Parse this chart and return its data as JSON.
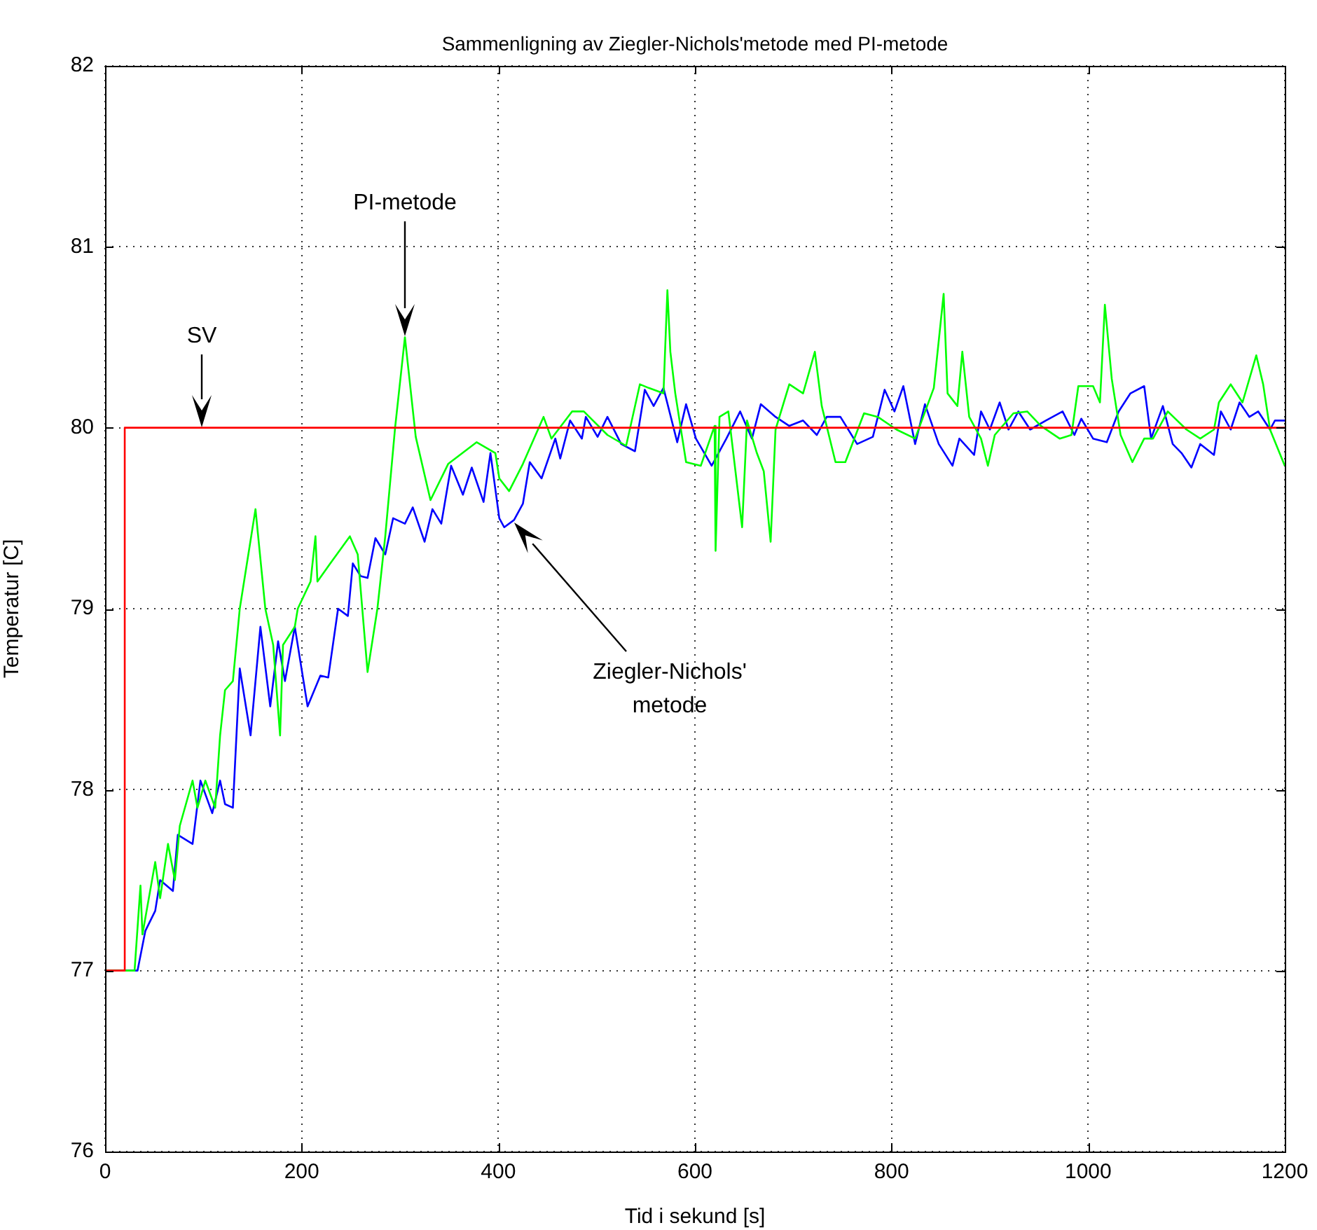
{
  "chart_data": {
    "type": "line",
    "title": "Sammenligning av Ziegler-Nichols'metode med PI-metode",
    "xlabel": "Tid i sekund [s]",
    "ylabel": "Temperatur [C]",
    "xlim": [
      0,
      1200
    ],
    "xticks": [
      0,
      200,
      400,
      600,
      800,
      1000,
      1200
    ],
    "ylim": [
      76,
      82
    ],
    "yticks": [
      76,
      77,
      78,
      79,
      80,
      81,
      82
    ],
    "grid": true,
    "legend": false,
    "marker": "none",
    "line_style": "solid",
    "annotations": [
      "SV",
      "PI-metode",
      "Ziegler-Nichols'\nmetode"
    ],
    "series": [
      {
        "color": "#ff0000",
        "x": [
          0,
          20,
          20,
          1200
        ],
        "values": [
          77,
          77,
          80,
          80
        ]
      },
      {
        "color": "#00ff00",
        "x": [
          0,
          30,
          36,
          38,
          51,
          56,
          64,
          71,
          76,
          89,
          94,
          102,
          112,
          117,
          122,
          130,
          137,
          153,
          163,
          171,
          178,
          181,
          193,
          196,
          209,
          214,
          216,
          229,
          249,
          257,
          267,
          277,
          285,
          295,
          305,
          316,
          331,
          349,
          378,
          397,
          401,
          411,
          425,
          446,
          454,
          475,
          487,
          511,
          530,
          544,
          553,
          568,
          572,
          575,
          580,
          591,
          606,
          620,
          621,
          625,
          634,
          648,
          653,
          663,
          670,
          677,
          682,
          696,
          710,
          722,
          729,
          743,
          753,
          772,
          786,
          805,
          824,
          843,
          853,
          857,
          867,
          872,
          879,
          891,
          898,
          905,
          924,
          938,
          952,
          971,
          983,
          990,
          1005,
          1012,
          1017,
          1024,
          1033,
          1045,
          1057,
          1066,
          1081,
          1100,
          1114,
          1128,
          1133,
          1145,
          1157,
          1171,
          1178,
          1185,
          1200
        ],
        "values": [
          77,
          77,
          77.47,
          77.2,
          77.6,
          77.4,
          77.7,
          77.5,
          77.8,
          78.05,
          77.9,
          78.05,
          77.9,
          78.3,
          78.55,
          78.6,
          79,
          79.55,
          79,
          78.8,
          78.3,
          78.8,
          78.9,
          79,
          79.15,
          79.4,
          79.15,
          79.25,
          79.4,
          79.3,
          78.65,
          79,
          79.4,
          80,
          80.5,
          79.95,
          79.6,
          79.8,
          79.92,
          79.86,
          79.72,
          79.65,
          79.8,
          80.06,
          79.94,
          80.09,
          80.09,
          79.96,
          79.9,
          80.24,
          80.22,
          80.19,
          80.76,
          80.42,
          80.19,
          79.81,
          79.79,
          80.01,
          79.32,
          80.06,
          80.09,
          79.45,
          80.04,
          79.86,
          79.76,
          79.37,
          79.99,
          80.24,
          80.19,
          80.42,
          80.12,
          79.81,
          79.81,
          80.08,
          80.06,
          79.99,
          79.94,
          80.22,
          80.74,
          80.19,
          80.12,
          80.42,
          80.06,
          79.94,
          79.79,
          79.96,
          80.08,
          80.09,
          80.01,
          79.94,
          79.96,
          80.23,
          80.23,
          80.14,
          80.68,
          80.27,
          79.96,
          79.81,
          79.94,
          79.94,
          80.09,
          79.99,
          79.94,
          79.99,
          80.14,
          80.24,
          80.14,
          80.4,
          80.24,
          79.99,
          79.79
        ]
      },
      {
        "color": "#0000ff",
        "x": [
          0,
          33,
          41,
          51,
          56,
          69,
          74,
          89,
          97,
          109,
          117,
          122,
          130,
          137,
          148,
          158,
          168,
          176,
          183,
          193,
          206,
          219,
          227,
          237,
          247,
          252,
          260,
          267,
          275,
          285,
          293,
          305,
          313,
          325,
          333,
          342,
          352,
          364,
          373,
          385,
          392,
          401,
          406,
          416,
          425,
          432,
          444,
          458,
          463,
          473,
          485,
          489,
          501,
          511,
          525,
          539,
          549,
          558,
          568,
          582,
          591,
          601,
          617,
          632,
          646,
          658,
          667,
          682,
          696,
          710,
          724,
          734,
          748,
          765,
          781,
          793,
          803,
          812,
          824,
          834,
          848,
          862,
          869,
          884,
          891,
          900,
          910,
          919,
          929,
          941,
          957,
          974,
          986,
          993,
          1005,
          1019,
          1031,
          1043,
          1057,
          1064,
          1076,
          1086,
          1095,
          1105,
          1114,
          1128,
          1135,
          1145,
          1154,
          1164,
          1173,
          1185,
          1190,
          1200
        ],
        "values": [
          77,
          77,
          77.22,
          77.33,
          77.5,
          77.44,
          77.75,
          77.7,
          78.05,
          77.87,
          78.05,
          77.92,
          77.9,
          78.67,
          78.3,
          78.9,
          78.46,
          78.82,
          78.6,
          78.9,
          78.46,
          78.63,
          78.62,
          79,
          78.96,
          79.25,
          79.18,
          79.17,
          79.39,
          79.3,
          79.5,
          79.47,
          79.56,
          79.37,
          79.55,
          79.47,
          79.79,
          79.63,
          79.78,
          79.59,
          79.86,
          79.5,
          79.45,
          79.49,
          79.58,
          79.81,
          79.72,
          79.94,
          79.83,
          80.04,
          79.94,
          80.06,
          79.95,
          80.06,
          79.91,
          79.87,
          80.21,
          80.12,
          80.22,
          79.92,
          80.13,
          79.94,
          79.79,
          79.94,
          80.09,
          79.94,
          80.13,
          80.06,
          80.01,
          80.04,
          79.96,
          80.06,
          80.06,
          79.91,
          79.95,
          80.21,
          80.09,
          80.23,
          79.91,
          80.13,
          79.91,
          79.79,
          79.94,
          79.85,
          80.09,
          79.99,
          80.14,
          79.99,
          80.09,
          79.99,
          80.04,
          80.09,
          79.96,
          80.05,
          79.94,
          79.92,
          80.09,
          80.19,
          80.23,
          79.94,
          80.12,
          79.91,
          79.86,
          79.78,
          79.91,
          79.85,
          80.09,
          79.99,
          80.14,
          80.06,
          80.09,
          79.99,
          80.04,
          80.04
        ]
      }
    ]
  }
}
